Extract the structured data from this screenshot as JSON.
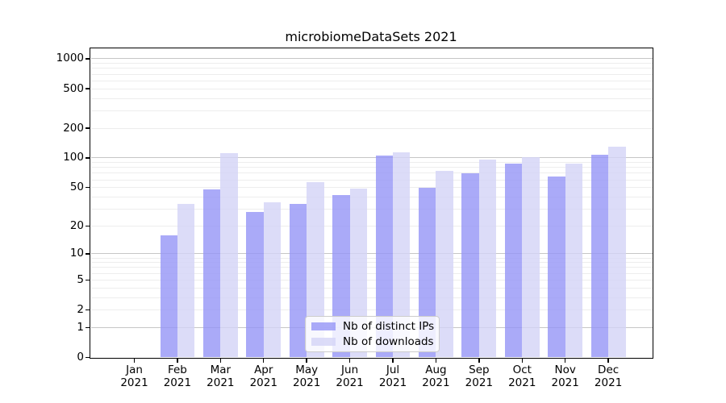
{
  "title": "microbiomeDataSets 2021",
  "chart_data": {
    "type": "bar",
    "title": "microbiomeDataSets 2021",
    "xlabel": "",
    "ylabel": "",
    "y_scale": "log10(value+1)",
    "ylim": [
      0,
      1270
    ],
    "grid": {
      "enabled": true,
      "major_values": [
        1,
        10,
        100,
        1000
      ],
      "major_color": "#c6c6c6",
      "minor_color": "#ededed"
    },
    "y_ticks": [
      0,
      1,
      2,
      5,
      10,
      20,
      50,
      100,
      200,
      500,
      1000
    ],
    "categories": [
      {
        "month": "Jan",
        "year": "2021"
      },
      {
        "month": "Feb",
        "year": "2021"
      },
      {
        "month": "Mar",
        "year": "2021"
      },
      {
        "month": "Apr",
        "year": "2021"
      },
      {
        "month": "May",
        "year": "2021"
      },
      {
        "month": "Jun",
        "year": "2021"
      },
      {
        "month": "Jul",
        "year": "2021"
      },
      {
        "month": "Aug",
        "year": "2021"
      },
      {
        "month": "Sep",
        "year": "2021"
      },
      {
        "month": "Oct",
        "year": "2021"
      },
      {
        "month": "Nov",
        "year": "2021"
      },
      {
        "month": "Dec",
        "year": "2021"
      }
    ],
    "series": [
      {
        "name": "Nb of distinct IPs",
        "key": "distinct-ips",
        "color": "rgba(149,149,246,0.8)",
        "values": [
          0,
          16,
          48,
          28,
          34,
          42,
          106,
          50,
          70,
          87,
          65,
          108
        ]
      },
      {
        "name": "Nb of downloads",
        "key": "downloads",
        "color": "rgba(211,211,246,0.8)",
        "values": [
          0,
          34,
          112,
          35,
          57,
          49,
          115,
          74,
          96,
          101,
          88,
          129
        ]
      }
    ],
    "legend": {
      "position": "lower-center"
    }
  },
  "colors": {
    "background": "#ffffff",
    "spine": "#000000",
    "text": "#000000"
  }
}
